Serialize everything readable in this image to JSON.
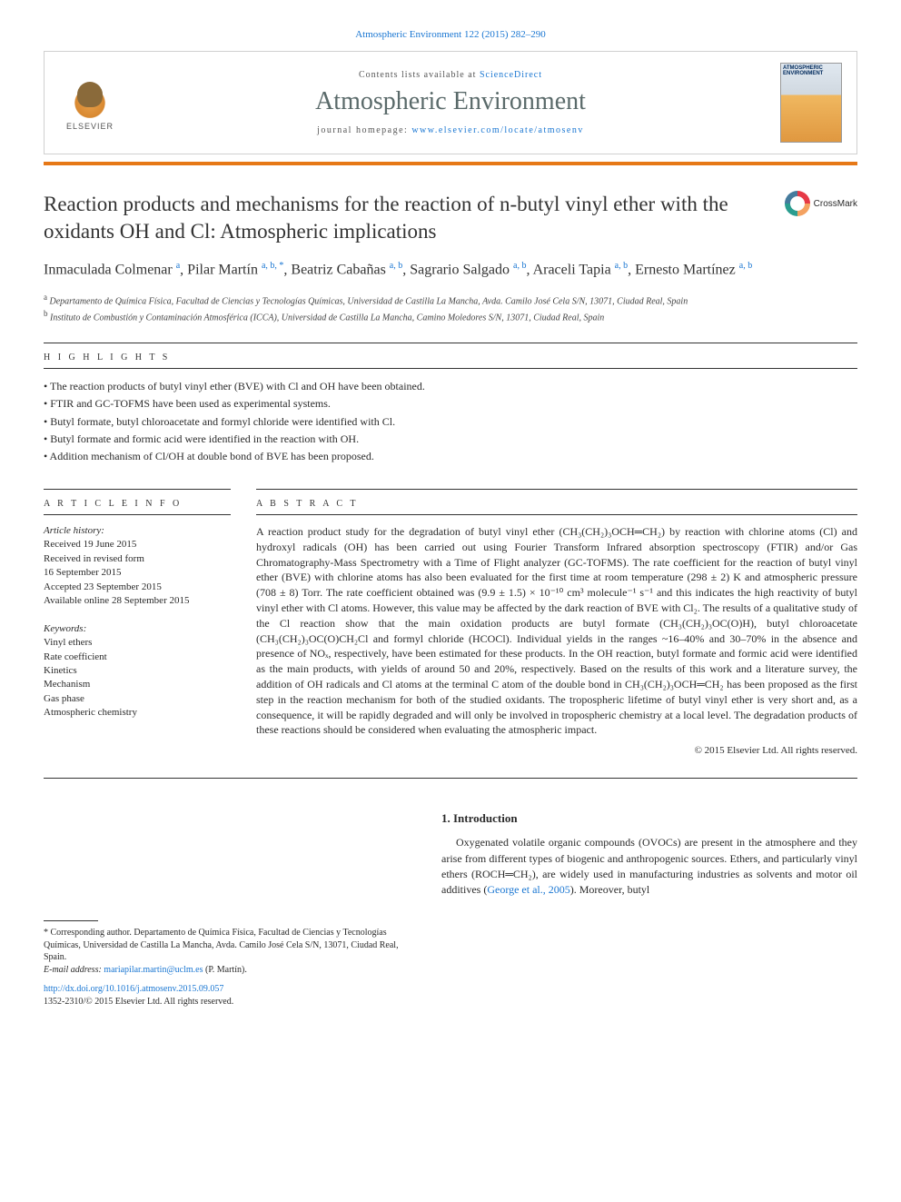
{
  "header": {
    "citation": "Atmospheric Environment 122 (2015) 282–290",
    "contents_prefix": "Contents lists available at ",
    "contents_link": "ScienceDirect",
    "journal_name": "Atmospheric Environment",
    "homepage_prefix": "journal homepage: ",
    "homepage_url": "www.elsevier.com/locate/atmosenv",
    "publisher": "ELSEVIER",
    "cover_label": "ATMOSPHERIC ENVIRONMENT"
  },
  "crossmark_label": "CrossMark",
  "title": "Reaction products and mechanisms for the reaction of n-butyl vinyl ether with the oxidants OH and Cl: Atmospheric implications",
  "authors_html": "Inmaculada Colmenar <sup>a</sup>, Pilar Martín <sup>a, b, *</sup>, Beatriz Cabañas <sup>a, b</sup>, Sagrario Salgado <sup>a, b</sup>, Araceli Tapia <sup>a, b</sup>, Ernesto Martínez <sup>a, b</sup>",
  "affiliations": [
    {
      "label": "a",
      "text": "Departamento de Química Física, Facultad de Ciencias y Tecnologías Químicas, Universidad de Castilla La Mancha, Avda. Camilo José Cela S/N, 13071, Ciudad Real, Spain"
    },
    {
      "label": "b",
      "text": "Instituto de Combustión y Contaminación Atmosférica (ICCA), Universidad de Castilla La Mancha, Camino Moledores S/N, 13071, Ciudad Real, Spain"
    }
  ],
  "highlights": {
    "label": "H I G H L I G H T S",
    "items": [
      "The reaction products of butyl vinyl ether (BVE) with Cl and OH have been obtained.",
      "FTIR and GC-TOFMS have been used as experimental systems.",
      "Butyl formate, butyl chloroacetate and formyl chloride were identified with Cl.",
      "Butyl formate and formic acid were identified in the reaction with OH.",
      "Addition mechanism of Cl/OH at double bond of BVE has been proposed."
    ]
  },
  "article_info": {
    "label": "A R T I C L E   I N F O",
    "history_label": "Article history:",
    "history": [
      "Received 19 June 2015",
      "Received in revised form",
      "16 September 2015",
      "Accepted 23 September 2015",
      "Available online 28 September 2015"
    ],
    "keywords_label": "Keywords:",
    "keywords": [
      "Vinyl ethers",
      "Rate coefficient",
      "Kinetics",
      "Mechanism",
      "Gas phase",
      "Atmospheric chemistry"
    ]
  },
  "abstract": {
    "label": "A B S T R A C T",
    "text": "A reaction product study for the degradation of butyl vinyl ether (CH₃(CH₂)₃OCH═CH₂) by reaction with chlorine atoms (Cl) and hydroxyl radicals (OH) has been carried out using Fourier Transform Infrared absorption spectroscopy (FTIR) and/or Gas Chromatography-Mass Spectrometry with a Time of Flight analyzer (GC-TOFMS). The rate coefficient for the reaction of butyl vinyl ether (BVE) with chlorine atoms has also been evaluated for the first time at room temperature (298 ± 2) K and atmospheric pressure (708 ± 8) Torr. The rate coefficient obtained was (9.9 ± 1.5) × 10⁻¹⁰ cm³ molecule⁻¹ s⁻¹ and this indicates the high reactivity of butyl vinyl ether with Cl atoms. However, this value may be affected by the dark reaction of BVE with Cl₂. The results of a qualitative study of the Cl reaction show that the main oxidation products are butyl formate (CH₃(CH₂)₃OC(O)H), butyl chloroacetate (CH₃(CH₂)₃OC(O)CH₂Cl and formyl chloride (HCOCl). Individual yields in the ranges ~16–40% and 30–70% in the absence and presence of NOₓ, respectively, have been estimated for these products. In the OH reaction, butyl formate and formic acid were identified as the main products, with yields of around 50 and 20%, respectively. Based on the results of this work and a literature survey, the addition of OH radicals and Cl atoms at the terminal C atom of the double bond in CH₃(CH₂)₃OCH═CH₂ has been proposed as the first step in the reaction mechanism for both of the studied oxidants. The tropospheric lifetime of butyl vinyl ether is very short and, as a consequence, it will be rapidly degraded and will only be involved in tropospheric chemistry at a local level. The degradation products of these reactions should be considered when evaluating the atmospheric impact.",
    "copyright": "© 2015 Elsevier Ltd. All rights reserved."
  },
  "introduction": {
    "heading": "1. Introduction",
    "text": "Oxygenated volatile organic compounds (OVOCs) are present in the atmosphere and they arise from different types of biogenic and anthropogenic sources. Ethers, and particularly vinyl ethers (ROCH═CH₂), are widely used in manufacturing industries as solvents and motor oil additives (",
    "citation": "George et al., 2005",
    "text_after": "). Moreover, butyl"
  },
  "footnote": {
    "corr": "* Corresponding author. Departamento de Química Física, Facultad de Ciencias y Tecnologías Químicas, Universidad de Castilla La Mancha, Avda. Camilo José Cela S/N, 13071, Ciudad Real, Spain.",
    "email_label": "E-mail address: ",
    "email": "mariapilar.martin@uclm.es",
    "email_person": " (P. Martín)."
  },
  "doi": {
    "url": "http://dx.doi.org/10.1016/j.atmosenv.2015.09.057",
    "issn_copyright": "1352-2310/© 2015 Elsevier Ltd. All rights reserved."
  },
  "colors": {
    "link": "#1976d2",
    "orange_bar": "#e67817",
    "text": "#2a2a2a",
    "journal_name": "#5a6a6a"
  }
}
